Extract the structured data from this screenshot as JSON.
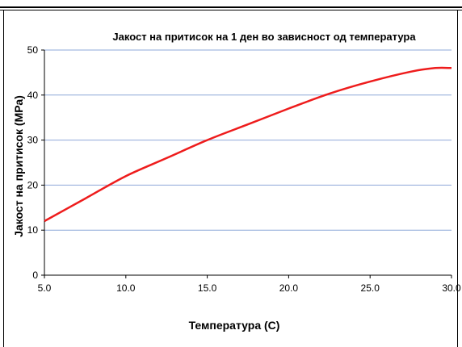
{
  "chart_data": {
    "type": "line",
    "title": "Јакост на притисок на 1 ден во зависност од температура",
    "xlabel": "Температура (C)",
    "ylabel": "Јакост на притисок (МРа)",
    "xlim": [
      5.0,
      30.0
    ],
    "ylim": [
      0,
      50
    ],
    "xticks": [
      "5.0",
      "10.0",
      "15.0",
      "20.0",
      "25.0",
      "30.0"
    ],
    "yticks": [
      "0",
      "10",
      "20",
      "30",
      "40",
      "50"
    ],
    "grid": true,
    "legend": "none",
    "series": [
      {
        "color": "#ee1c1c",
        "x": [
          5.0,
          7.5,
          10.0,
          12.5,
          15.0,
          17.5,
          20.0,
          22.5,
          25.0,
          27.5,
          29.0,
          30.0
        ],
        "y": [
          12.0,
          17.0,
          22.0,
          26.0,
          30.0,
          33.5,
          37.0,
          40.3,
          43.0,
          45.2,
          46.0,
          46.0
        ]
      }
    ]
  }
}
